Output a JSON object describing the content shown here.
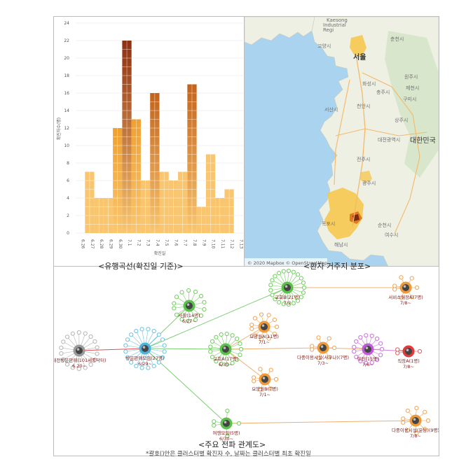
{
  "chart_data": {
    "type": "bar",
    "categories": [
      "6.26",
      "6.27",
      "6.28",
      "6.29",
      "6.30",
      "7.1",
      "7.2",
      "7.3",
      "7.4",
      "7.5",
      "7.6",
      "7.7",
      "7.8",
      "7.9",
      "7.10",
      "7.11",
      "7.12",
      "7.13"
    ],
    "values": [
      0,
      7,
      4,
      4,
      12,
      22,
      13,
      6,
      16,
      7,
      6,
      7,
      17,
      3,
      9,
      4,
      5,
      0
    ],
    "ylabel": "확진자수(명)",
    "xlabel": "확진일",
    "ylim": [
      0,
      24
    ],
    "yticks": [
      0,
      2,
      4,
      6,
      8,
      10,
      12,
      14,
      16,
      18,
      20,
      22,
      24
    ],
    "colors": {
      "low": "#f9c66f",
      "mid": "#f0a030",
      "high": "#c4631b",
      "top": "#8e2f12"
    }
  },
  "captions": {
    "chart": "<유행곡선(확진일 기준)>",
    "map": "<환자 거주지 분포>",
    "network": "<주요 전파 관계도>",
    "note": "*괄호()안은 클러스터별 확진자 수, 날짜는 클러스터별 최초 확진일"
  },
  "map": {
    "attribution": "© 2020 Mapbox © OpenStreetMap",
    "labels": {
      "kaesong": "Kaesong",
      "kaesong2": "Industrial",
      "kaesong3": "Regi",
      "seoul": "서울",
      "chuncheon": "춘천시",
      "jecheon": "제천시",
      "cheonan": "천안시",
      "seosan": "서산시",
      "korea": "대한민국",
      "daejeon": "대전광역시",
      "jeonju": "전주시",
      "suncheon": "순천시",
      "haenam": "해남시",
      "gwangju": "광주시",
      "hwaseong": "화성시",
      "gangneung": "고양시",
      "wonju": "원주시",
      "gumi": "구미시",
      "chungju": "충주시",
      "mokpo": "목포시",
      "sangju": "상주시",
      "yeosu": "여수시"
    }
  },
  "network": {
    "nodes": {
      "daejeon_sale": {
        "label": "대전방문판매(101세종닥터)",
        "date": "6.20~"
      },
      "visit_sale": {
        "label": "방문판매모임(27명)",
        "date": "6/29~"
      },
      "sauna": {
        "label": "사찰(14명)",
        "date": "6/27~"
      },
      "church_a": {
        "label": "교회A(17명)",
        "date": "6/30~"
      },
      "church_b": {
        "label": "교회B(21명)",
        "date": "7/2"
      },
      "nursing_a": {
        "label": "요양원A(11명)",
        "date": "7/1~"
      },
      "nursing_b": {
        "label": "요양원B(7명)",
        "date": "7/1~"
      },
      "multi_a": {
        "label": "다중이용시설(사우나)(7명)",
        "date": "7/3~"
      },
      "academy": {
        "label": "학원(15명)",
        "date": "7/6~"
      },
      "work_a": {
        "label": "직장A(1명)",
        "date": "7/8~"
      },
      "service_a": {
        "label": "서비스매장A(7명)",
        "date": "7/8~"
      },
      "travel": {
        "label": "여행모임(5명)",
        "date": "6/30~"
      },
      "multi_b": {
        "label": "다중이용시설(운동)(9명)",
        "date": "7/8~"
      }
    }
  }
}
